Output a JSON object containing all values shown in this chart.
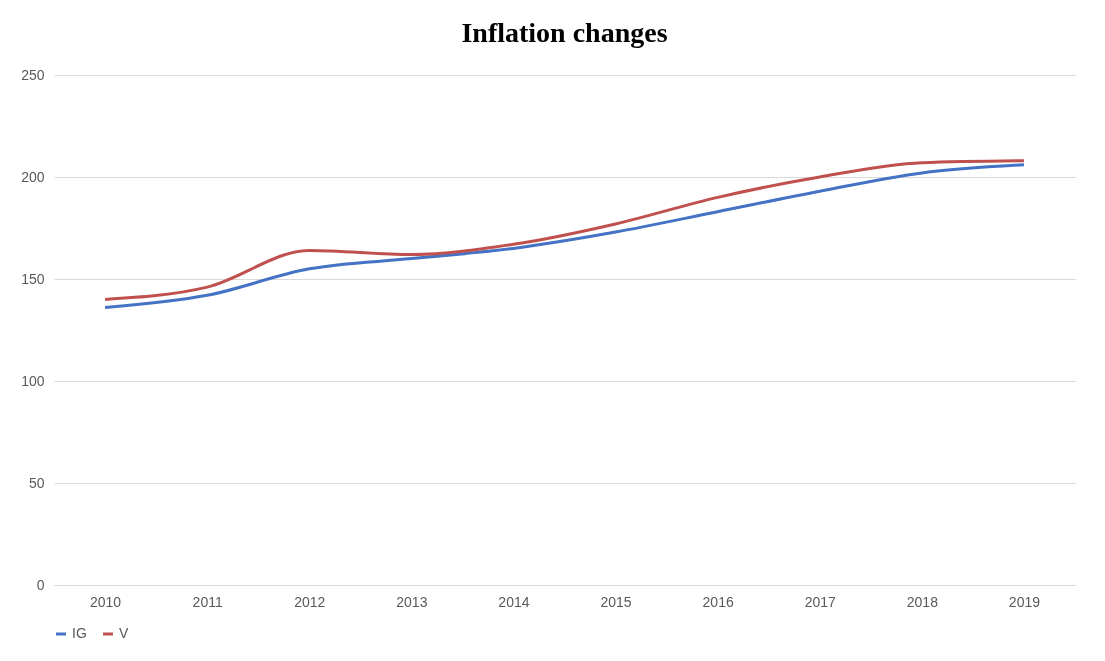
{
  "chart_data": {
    "type": "line",
    "title": "Inflation changes",
    "categories": [
      "2010",
      "2011",
      "2012",
      "2013",
      "2014",
      "2015",
      "2016",
      "2017",
      "2018",
      "2019"
    ],
    "series": [
      {
        "name": "IG",
        "color": "#4472c4",
        "values": [
          136,
          142,
          155,
          160,
          165,
          173,
          183,
          193,
          202,
          206
        ]
      },
      {
        "name": "V",
        "color": "#c0504d",
        "values": [
          140,
          146,
          164,
          162,
          167,
          177,
          190,
          200,
          207,
          208
        ]
      }
    ],
    "ylim": [
      0,
      250
    ],
    "yticks": [
      0,
      50,
      100,
      150,
      200,
      250
    ],
    "grid": "y",
    "legend": "bottom",
    "marker": "none",
    "line_style": "solid"
  }
}
